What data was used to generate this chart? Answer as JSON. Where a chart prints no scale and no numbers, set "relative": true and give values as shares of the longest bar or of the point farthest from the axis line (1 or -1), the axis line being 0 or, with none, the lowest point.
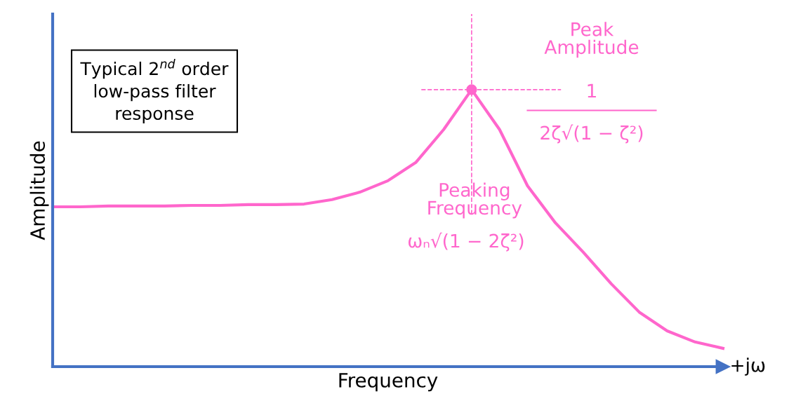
{
  "chart_data": {
    "type": "line",
    "relative": true,
    "xlabel": "Frequency",
    "ylabel": "Amplitude",
    "categories": [
      null,
      null,
      null,
      null,
      null,
      null,
      null,
      null,
      null,
      null,
      null,
      null,
      null,
      null,
      null,
      null,
      null,
      null,
      null,
      null,
      null,
      null,
      null,
      null,
      null
    ],
    "series": [
      {
        "color": "#ff66cc",
        "values": [
          0.577,
          0.577,
          0.58,
          0.58,
          0.58,
          0.582,
          0.582,
          0.585,
          0.585,
          0.587,
          0.603,
          0.63,
          0.671,
          0.737,
          0.856,
          1.0,
          0.856,
          0.653,
          0.519,
          0.413,
          0.299,
          0.197,
          0.129,
          0.089,
          0.066
        ]
      }
    ],
    "annotations": [
      "Typical 2$^{nd}$ order\nlow-pass filter\nresponse",
      "Peak\nAmplitude",
      "1",
      "2ζ√(1 − ζ²)",
      "Peaking\nFrequency",
      "ωₙ√(1 − 2ζ²)",
      "+jω"
    ],
    "legend": false
  }
}
